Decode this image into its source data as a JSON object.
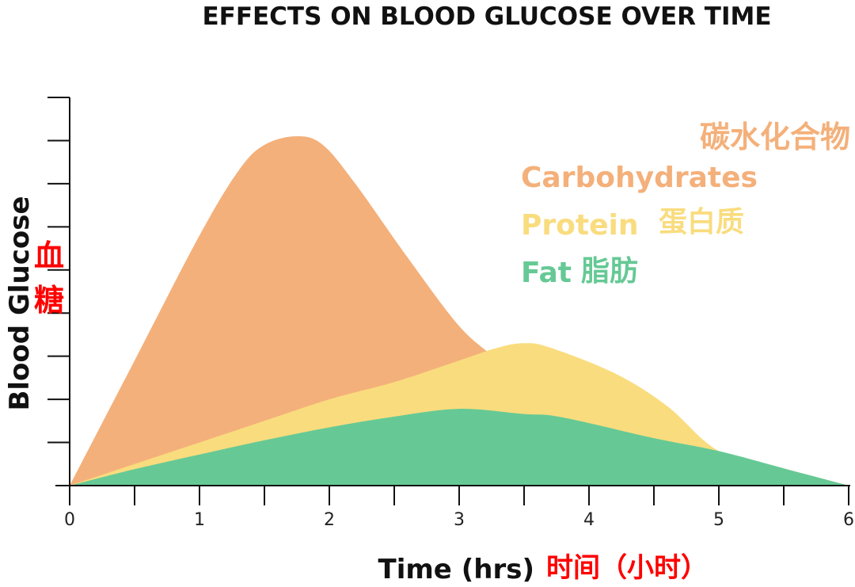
{
  "chart_data": {
    "type": "area",
    "title": "EFFECTS ON BLOOD GLUCOSE OVER TIME",
    "ylabel": "Blood Glucose",
    "ylabel_cn": "血糖",
    "xlabel": "Time (hrs)",
    "xlabel_cn": "时间（小时）",
    "xlim": [
      0,
      6
    ],
    "ylim": [
      0,
      9
    ],
    "x_ticks": [
      "0",
      "1",
      "2",
      "3",
      "4",
      "5",
      "6"
    ],
    "y_ticks_count": 9,
    "grid": false,
    "legend_placement": "top-right",
    "series": [
      {
        "name": "Carbohydrates",
        "name_cn": "碳水化合物",
        "color": "#F4B07A",
        "x": [
          0,
          0.5,
          1.0,
          1.3,
          1.5,
          1.75,
          1.95,
          2.2,
          2.6,
          3.0,
          3.3,
          3.55
        ],
        "y": [
          0,
          2.9,
          5.8,
          7.3,
          7.9,
          8.1,
          7.9,
          7.0,
          5.3,
          3.7,
          2.9,
          2.2
        ]
      },
      {
        "name": "Protein",
        "name_cn": "蛋白质",
        "color": "#F9DC7E",
        "x": [
          0,
          0.5,
          1.0,
          1.5,
          2.0,
          2.5,
          3.0,
          3.3,
          3.5,
          3.7,
          4.2,
          4.6,
          5.0,
          5.5,
          6.0
        ],
        "y": [
          0,
          0.5,
          1.0,
          1.5,
          2.0,
          2.4,
          2.9,
          3.2,
          3.3,
          3.2,
          2.6,
          1.85,
          0.8,
          0.4,
          0
        ]
      },
      {
        "name": "Fat",
        "name_cn": "脂肪",
        "color": "#66C995",
        "x": [
          0,
          0.5,
          1.0,
          1.5,
          2.0,
          2.5,
          3.0,
          3.5,
          3.7,
          4.0,
          4.5,
          5.0,
          5.5,
          6.0
        ],
        "y": [
          0,
          0.38,
          0.72,
          1.05,
          1.35,
          1.6,
          1.78,
          1.66,
          1.63,
          1.45,
          1.1,
          0.8,
          0.4,
          0
        ]
      }
    ]
  }
}
